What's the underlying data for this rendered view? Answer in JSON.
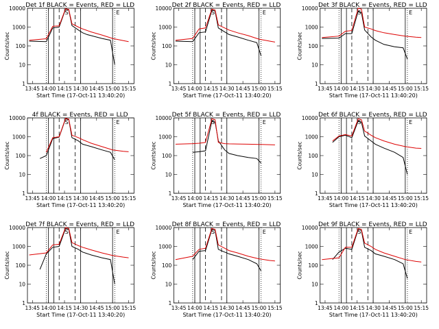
{
  "common": {
    "xlabel": "Start Time (17-Oct-11 13:40:20)",
    "ylabel": "Counts/sec",
    "x_ticks": [
      "13:45",
      "14:00",
      "14:15",
      "14:30",
      "14:45",
      "15:00",
      "15:15"
    ],
    "y_ticks": [
      "1",
      "10",
      "100",
      "1000",
      "10000"
    ],
    "solid_markers": [
      "14:00",
      "14:05",
      "14:30",
      "15:00"
    ],
    "dashed_markers": [
      "14:10",
      "14:25"
    ],
    "dotted_markers": [
      "13:58",
      "15:02"
    ],
    "marker_letters": [
      "S",
      "E"
    ],
    "colors": {
      "events": "#000000",
      "lld": "#dd0000"
    }
  },
  "chart_data": [
    {
      "type": "line",
      "title": "Det 1f BLACK = Events, RED = LLD",
      "ylim": [
        1,
        10000
      ],
      "yscale": "log",
      "series": [
        {
          "name": "Events",
          "x": [
            "13:42",
            "13:58",
            "14:04",
            "14:10",
            "14:16",
            "14:19",
            "14:22",
            "14:28",
            "14:32",
            "14:36",
            "14:40",
            "14:50",
            "14:58",
            "15:02"
          ],
          "values": [
            180,
            170,
            900,
            1000,
            9000,
            8000,
            1200,
            700,
            500,
            400,
            350,
            250,
            200,
            10
          ]
        },
        {
          "name": "LLD",
          "x": [
            "13:42",
            "13:58",
            "14:04",
            "14:10",
            "14:16",
            "14:19",
            "14:22",
            "14:28",
            "14:32",
            "14:40",
            "14:50",
            "15:00",
            "15:10",
            "15:15"
          ],
          "values": [
            200,
            240,
            1100,
            1150,
            9500,
            8500,
            1500,
            1000,
            800,
            550,
            380,
            250,
            190,
            170
          ]
        }
      ]
    },
    {
      "type": "line",
      "title": "Det 2f BLACK = Events, RED = LLD",
      "ylim": [
        1,
        10000
      ],
      "yscale": "log",
      "series": [
        {
          "name": "Events",
          "x": [
            "13:42",
            "13:58",
            "14:04",
            "14:10",
            "14:16",
            "14:19",
            "14:22",
            "14:28",
            "14:32",
            "14:40",
            "14:50",
            "14:58",
            "15:02"
          ],
          "values": [
            180,
            170,
            500,
            550,
            8000,
            7000,
            900,
            550,
            400,
            300,
            200,
            150,
            30
          ]
        },
        {
          "name": "LLD",
          "x": [
            "13:42",
            "13:58",
            "14:04",
            "14:10",
            "14:16",
            "14:19",
            "14:22",
            "14:28",
            "14:32",
            "14:40",
            "14:50",
            "15:00",
            "15:10",
            "15:15"
          ],
          "values": [
            200,
            250,
            800,
            900,
            9000,
            8000,
            1300,
            900,
            700,
            500,
            350,
            230,
            180,
            160
          ]
        }
      ]
    },
    {
      "type": "line",
      "title": "Det 3f BLACK = Events, RED = LLD",
      "ylim": [
        1,
        10000
      ],
      "yscale": "log",
      "series": [
        {
          "name": "Events",
          "x": [
            "13:42",
            "13:58",
            "14:04",
            "14:10",
            "14:16",
            "14:19",
            "14:22",
            "14:28",
            "14:32",
            "14:40",
            "14:50",
            "14:58",
            "15:02"
          ],
          "values": [
            250,
            260,
            450,
            450,
            7000,
            6000,
            700,
            300,
            200,
            120,
            90,
            80,
            20
          ]
        },
        {
          "name": "LLD",
          "x": [
            "13:42",
            "13:58",
            "14:04",
            "14:10",
            "14:16",
            "14:19",
            "14:22",
            "14:28",
            "14:32",
            "14:40",
            "14:50",
            "15:00",
            "15:10",
            "15:15"
          ],
          "values": [
            280,
            330,
            600,
            650,
            10000,
            9000,
            1000,
            800,
            650,
            500,
            400,
            330,
            290,
            280
          ]
        }
      ]
    },
    {
      "type": "line",
      "title": "4f BLACK = Events, RED = LLD",
      "ylim": [
        1,
        10000
      ],
      "yscale": "log",
      "series": [
        {
          "name": "Events",
          "x": [
            "13:52",
            "13:58",
            "14:04",
            "14:10",
            "14:16",
            "14:19",
            "14:22",
            "14:28",
            "14:32",
            "14:40",
            "14:50",
            "14:58",
            "15:02"
          ],
          "values": [
            70,
            100,
            800,
            950,
            9000,
            8000,
            900,
            600,
            400,
            300,
            200,
            150,
            60
          ]
        },
        {
          "name": "LLD",
          "x": [
            "13:58",
            "14:04",
            "14:10",
            "14:16",
            "14:19",
            "14:22",
            "14:28",
            "14:32",
            "14:40",
            "14:50",
            "15:00",
            "15:10",
            "15:15"
          ],
          "values": [
            150,
            900,
            1000,
            9500,
            8500,
            1200,
            900,
            700,
            450,
            300,
            200,
            170,
            160
          ]
        }
      ]
    },
    {
      "type": "line",
      "title": "Det 5f BLACK = Events, RED = LLD",
      "ylim": [
        1,
        10000
      ],
      "yscale": "log",
      "series": [
        {
          "name": "Events",
          "x": [
            "13:58",
            "14:04",
            "14:10",
            "14:16",
            "14:19",
            "14:22",
            "14:28",
            "14:32",
            "14:40",
            "14:50",
            "14:58",
            "15:02"
          ],
          "values": [
            150,
            160,
            180,
            7000,
            6000,
            600,
            200,
            130,
            100,
            80,
            70,
            40
          ]
        },
        {
          "name": "LLD",
          "x": [
            "13:42",
            "13:58",
            "14:04",
            "14:10",
            "14:16",
            "14:19",
            "14:22",
            "14:28",
            "14:32",
            "14:40",
            "14:50",
            "15:00",
            "15:10",
            "15:15"
          ],
          "values": [
            400,
            430,
            450,
            500,
            9000,
            8000,
            500,
            430,
            420,
            410,
            400,
            390,
            380,
            370
          ]
        }
      ]
    },
    {
      "type": "line",
      "title": "Det 6f BLACK = Events, RED = LLD",
      "ylim": [
        1,
        10000
      ],
      "yscale": "log",
      "series": [
        {
          "name": "Events",
          "x": [
            "13:52",
            "13:58",
            "14:04",
            "14:10",
            "14:16",
            "14:19",
            "14:22",
            "14:28",
            "14:32",
            "14:40",
            "14:50",
            "14:58",
            "15:02"
          ],
          "values": [
            500,
            1000,
            1200,
            900,
            7000,
            6000,
            1100,
            600,
            400,
            250,
            150,
            80,
            10
          ]
        },
        {
          "name": "LLD",
          "x": [
            "13:52",
            "13:58",
            "14:04",
            "14:10",
            "14:16",
            "14:19",
            "14:22",
            "14:28",
            "14:32",
            "14:40",
            "14:50",
            "15:00",
            "15:10",
            "15:15"
          ],
          "values": [
            600,
            1100,
            1300,
            1100,
            9000,
            8000,
            2000,
            1200,
            900,
            600,
            400,
            300,
            250,
            240
          ]
        }
      ]
    },
    {
      "type": "line",
      "title": "Det 7f BLACK = Events, RED = LLD",
      "ylim": [
        1,
        10000
      ],
      "yscale": "log",
      "series": [
        {
          "name": "Events",
          "x": [
            "13:52",
            "13:58",
            "14:04",
            "14:10",
            "14:16",
            "14:19",
            "14:22",
            "14:28",
            "14:32",
            "14:40",
            "14:50",
            "14:58",
            "15:02"
          ],
          "values": [
            60,
            400,
            900,
            1000,
            9000,
            8000,
            1000,
            700,
            500,
            350,
            250,
            200,
            10
          ]
        },
        {
          "name": "LLD",
          "x": [
            "13:42",
            "13:58",
            "14:04",
            "14:10",
            "14:16",
            "14:19",
            "14:22",
            "14:28",
            "14:32",
            "14:40",
            "14:50",
            "15:00",
            "15:10",
            "15:15"
          ],
          "values": [
            350,
            450,
            1200,
            1300,
            10000,
            9000,
            1600,
            1100,
            900,
            650,
            450,
            330,
            270,
            250
          ]
        }
      ]
    },
    {
      "type": "line",
      "title": "Det 8f BLACK = Events, RED = LLD",
      "ylim": [
        1,
        10000
      ],
      "yscale": "log",
      "series": [
        {
          "name": "Events",
          "x": [
            "13:58",
            "14:04",
            "14:10",
            "14:16",
            "14:19",
            "14:22",
            "14:28",
            "14:32",
            "14:40",
            "14:50",
            "14:58",
            "15:02"
          ],
          "values": [
            200,
            550,
            600,
            8000,
            7000,
            700,
            500,
            400,
            300,
            200,
            120,
            50
          ]
        },
        {
          "name": "LLD",
          "x": [
            "13:42",
            "13:58",
            "14:04",
            "14:10",
            "14:16",
            "14:19",
            "14:22",
            "14:28",
            "14:32",
            "14:40",
            "14:50",
            "15:00",
            "15:10",
            "15:15"
          ],
          "values": [
            200,
            300,
            700,
            800,
            9000,
            8000,
            1200,
            800,
            600,
            450,
            300,
            220,
            180,
            170
          ]
        }
      ]
    },
    {
      "type": "line",
      "title": "Det 9f BLACK = Events, RED = LLD",
      "ylim": [
        1,
        10000
      ],
      "yscale": "log",
      "series": [
        {
          "name": "Events",
          "x": [
            "13:52",
            "13:58",
            "14:04",
            "14:10",
            "14:16",
            "14:19",
            "14:22",
            "14:28",
            "14:32",
            "14:40",
            "14:50",
            "14:58",
            "15:02"
          ],
          "values": [
            200,
            500,
            800,
            700,
            8000,
            7000,
            900,
            600,
            400,
            300,
            200,
            120,
            20
          ]
        },
        {
          "name": "LLD",
          "x": [
            "13:42",
            "13:58",
            "14:04",
            "14:10",
            "14:16",
            "14:19",
            "14:22",
            "14:28",
            "14:32",
            "14:40",
            "14:50",
            "15:00",
            "15:10",
            "15:15"
          ],
          "values": [
            200,
            250,
            900,
            900,
            9000,
            8000,
            1500,
            1000,
            700,
            450,
            300,
            200,
            160,
            150
          ]
        }
      ]
    }
  ]
}
